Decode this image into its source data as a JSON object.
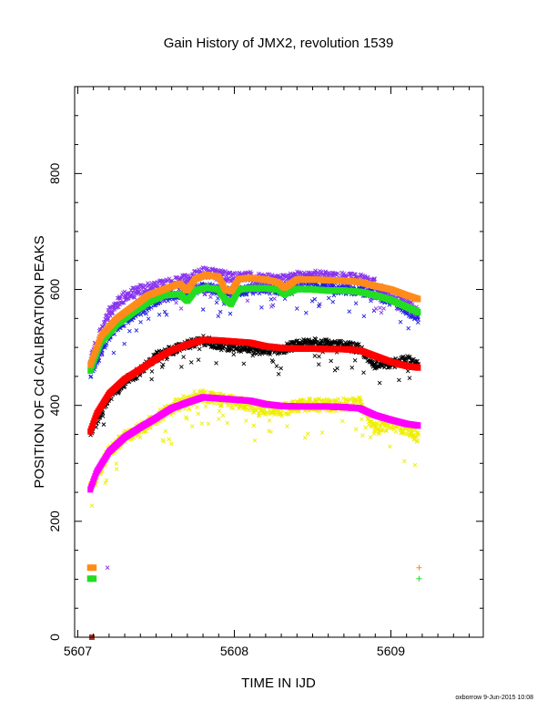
{
  "chart_data": {
    "type": "scatter",
    "title": "Gain History of JMX2, revolution 1539",
    "xlabel": "TIME IN IJD",
    "ylabel": "POSITION OF Cd CALIBRATION PEAKS",
    "footer": "oxborrow  9-Jun-2015 10:08",
    "xlim": [
      5606.98,
      5609.59
    ],
    "ylim": [
      0,
      950
    ],
    "x_ticks": [
      5607,
      5608,
      5609
    ],
    "x_tick_labels": [
      "5607",
      "5608",
      "5609"
    ],
    "y_ticks": [
      0,
      200,
      400,
      600,
      800
    ],
    "y_tick_labels": [
      "0",
      "200",
      "400",
      "600",
      "800"
    ],
    "grid": false,
    "legend": "none",
    "x_range_data": [
      5607.08,
      5609.18
    ],
    "colors": {
      "orange": "#ff8c1a",
      "purple": "#8833ee",
      "green": "#22dd22",
      "blue": "#2222dd",
      "red": "#ff0000",
      "black": "#000000",
      "magenta": "#ff00ff",
      "yellow": "#eeee00",
      "brown": "#aa3322"
    },
    "series": [
      {
        "color": "orange",
        "points": [
          [
            5607.08,
            470
          ],
          [
            5607.15,
            520
          ],
          [
            5607.25,
            550
          ],
          [
            5607.35,
            570
          ],
          [
            5607.45,
            590
          ],
          [
            5607.55,
            600
          ],
          [
            5607.65,
            610
          ],
          [
            5607.7,
            598
          ],
          [
            5607.75,
            618
          ],
          [
            5607.82,
            625
          ],
          [
            5607.9,
            622
          ],
          [
            5607.94,
            600
          ],
          [
            5607.98,
            597
          ],
          [
            5608.03,
            618
          ],
          [
            5608.1,
            620
          ],
          [
            5608.2,
            617
          ],
          [
            5608.28,
            612
          ],
          [
            5608.32,
            603
          ],
          [
            5608.4,
            617
          ],
          [
            5608.5,
            617
          ],
          [
            5608.6,
            616
          ],
          [
            5608.7,
            615
          ],
          [
            5608.8,
            613
          ],
          [
            5608.9,
            606
          ],
          [
            5609.0,
            600
          ],
          [
            5609.1,
            590
          ],
          [
            5609.18,
            583
          ]
        ]
      },
      {
        "color": "green",
        "points": [
          [
            5607.08,
            460
          ],
          [
            5607.15,
            510
          ],
          [
            5607.25,
            540
          ],
          [
            5607.35,
            560
          ],
          [
            5607.45,
            578
          ],
          [
            5607.55,
            590
          ],
          [
            5607.65,
            592
          ],
          [
            5607.7,
            580
          ],
          [
            5607.75,
            598
          ],
          [
            5607.82,
            603
          ],
          [
            5607.9,
            600
          ],
          [
            5607.94,
            583
          ],
          [
            5607.98,
            575
          ],
          [
            5608.03,
            600
          ],
          [
            5608.1,
            602
          ],
          [
            5608.2,
            602
          ],
          [
            5608.28,
            600
          ],
          [
            5608.32,
            592
          ],
          [
            5608.4,
            601
          ],
          [
            5608.5,
            600
          ],
          [
            5608.6,
            598
          ],
          [
            5608.7,
            598
          ],
          [
            5608.8,
            596
          ],
          [
            5608.9,
            590
          ],
          [
            5609.0,
            582
          ],
          [
            5609.1,
            570
          ],
          [
            5609.18,
            560
          ]
        ]
      },
      {
        "color": "red",
        "points": [
          [
            5607.08,
            355
          ],
          [
            5607.12,
            385
          ],
          [
            5607.2,
            420
          ],
          [
            5607.3,
            445
          ],
          [
            5607.4,
            462
          ],
          [
            5607.5,
            480
          ],
          [
            5607.6,
            495
          ],
          [
            5607.7,
            505
          ],
          [
            5607.8,
            513
          ],
          [
            5607.9,
            512
          ],
          [
            5608.0,
            510
          ],
          [
            5608.1,
            508
          ],
          [
            5608.2,
            502
          ],
          [
            5608.3,
            499
          ],
          [
            5608.4,
            498
          ],
          [
            5608.5,
            498
          ],
          [
            5608.6,
            497
          ],
          [
            5608.7,
            497
          ],
          [
            5608.8,
            495
          ],
          [
            5608.9,
            485
          ],
          [
            5609.0,
            475
          ],
          [
            5609.1,
            468
          ],
          [
            5609.18,
            465
          ]
        ]
      },
      {
        "color": "magenta",
        "points": [
          [
            5607.08,
            255
          ],
          [
            5607.12,
            285
          ],
          [
            5607.2,
            320
          ],
          [
            5607.3,
            345
          ],
          [
            5607.4,
            362
          ],
          [
            5607.5,
            378
          ],
          [
            5607.6,
            395
          ],
          [
            5607.7,
            405
          ],
          [
            5607.8,
            414
          ],
          [
            5607.9,
            412
          ],
          [
            5608.0,
            410
          ],
          [
            5608.1,
            408
          ],
          [
            5608.2,
            402
          ],
          [
            5608.3,
            399
          ],
          [
            5608.4,
            398
          ],
          [
            5608.5,
            398
          ],
          [
            5608.6,
            398
          ],
          [
            5608.7,
            397
          ],
          [
            5608.8,
            395
          ],
          [
            5608.9,
            383
          ],
          [
            5609.0,
            375
          ],
          [
            5609.1,
            368
          ],
          [
            5609.18,
            365
          ]
        ]
      },
      {
        "color": "purple",
        "points": [
          [
            5607.08,
            480
          ],
          [
            5607.2,
            560
          ],
          [
            5607.3,
            590
          ],
          [
            5607.4,
            600
          ],
          [
            5607.5,
            605
          ],
          [
            5607.6,
            612
          ],
          [
            5607.7,
            618
          ],
          [
            5607.8,
            630
          ],
          [
            5607.9,
            625
          ],
          [
            5608.0,
            620
          ],
          [
            5608.1,
            622
          ],
          [
            5608.2,
            619
          ],
          [
            5608.3,
            615
          ],
          [
            5608.4,
            622
          ],
          [
            5608.5,
            625
          ],
          [
            5608.6,
            622
          ],
          [
            5608.7,
            620
          ],
          [
            5608.8,
            618
          ],
          [
            5608.9,
            610
          ],
          [
            5609.0,
            590
          ],
          [
            5609.1,
            575
          ],
          [
            5609.18,
            560
          ]
        ]
      },
      {
        "color": "blue",
        "points": [
          [
            5607.08,
            455
          ],
          [
            5607.2,
            520
          ],
          [
            5607.3,
            545
          ],
          [
            5607.4,
            565
          ],
          [
            5607.5,
            580
          ],
          [
            5607.6,
            590
          ],
          [
            5607.7,
            595
          ],
          [
            5607.8,
            605
          ],
          [
            5607.9,
            598
          ],
          [
            5608.0,
            595
          ],
          [
            5608.1,
            600
          ],
          [
            5608.2,
            602
          ],
          [
            5608.3,
            598
          ],
          [
            5608.4,
            605
          ],
          [
            5608.5,
            606
          ],
          [
            5608.6,
            603
          ],
          [
            5608.7,
            600
          ],
          [
            5608.8,
            598
          ],
          [
            5608.9,
            592
          ],
          [
            5609.0,
            580
          ],
          [
            5609.1,
            565
          ],
          [
            5609.18,
            550
          ]
        ]
      },
      {
        "color": "black",
        "points": [
          [
            5607.08,
            352
          ],
          [
            5607.2,
            415
          ],
          [
            5607.3,
            440
          ],
          [
            5607.4,
            460
          ],
          [
            5607.5,
            485
          ],
          [
            5607.6,
            495
          ],
          [
            5607.7,
            505
          ],
          [
            5607.8,
            512
          ],
          [
            5607.9,
            505
          ],
          [
            5608.0,
            500
          ],
          [
            5608.1,
            498
          ],
          [
            5608.2,
            495
          ],
          [
            5608.3,
            497
          ],
          [
            5608.4,
            505
          ],
          [
            5608.5,
            508
          ],
          [
            5608.6,
            505
          ],
          [
            5608.7,
            503
          ],
          [
            5608.8,
            498
          ],
          [
            5608.9,
            470
          ],
          [
            5609.0,
            472
          ],
          [
            5609.1,
            478
          ],
          [
            5609.18,
            470
          ]
        ]
      },
      {
        "color": "yellow",
        "points": [
          [
            5607.08,
            255
          ],
          [
            5607.2,
            320
          ],
          [
            5607.3,
            345
          ],
          [
            5607.4,
            360
          ],
          [
            5607.5,
            378
          ],
          [
            5607.6,
            395
          ],
          [
            5607.7,
            410
          ],
          [
            5607.8,
            418
          ],
          [
            5607.9,
            410
          ],
          [
            5608.0,
            405
          ],
          [
            5608.1,
            400
          ],
          [
            5608.2,
            395
          ],
          [
            5608.3,
            392
          ],
          [
            5608.4,
            398
          ],
          [
            5608.5,
            402
          ],
          [
            5608.6,
            400
          ],
          [
            5608.7,
            402
          ],
          [
            5608.8,
            403
          ],
          [
            5608.9,
            360
          ],
          [
            5609.0,
            368
          ],
          [
            5609.1,
            360
          ],
          [
            5609.18,
            345
          ]
        ]
      }
    ],
    "reference_markers": [
      {
        "color": "orange",
        "points": [
          [
            5607.08,
            120
          ],
          [
            5607.1,
            120
          ],
          [
            5609.18,
            120
          ]
        ]
      },
      {
        "color": "green",
        "points": [
          [
            5607.08,
            101
          ],
          [
            5607.1,
            101
          ],
          [
            5609.18,
            101
          ]
        ]
      },
      {
        "color": "purple",
        "points": [
          [
            5607.19,
            120
          ]
        ]
      },
      {
        "color": "brown",
        "points": [
          [
            5607.09,
            0
          ]
        ]
      }
    ]
  }
}
